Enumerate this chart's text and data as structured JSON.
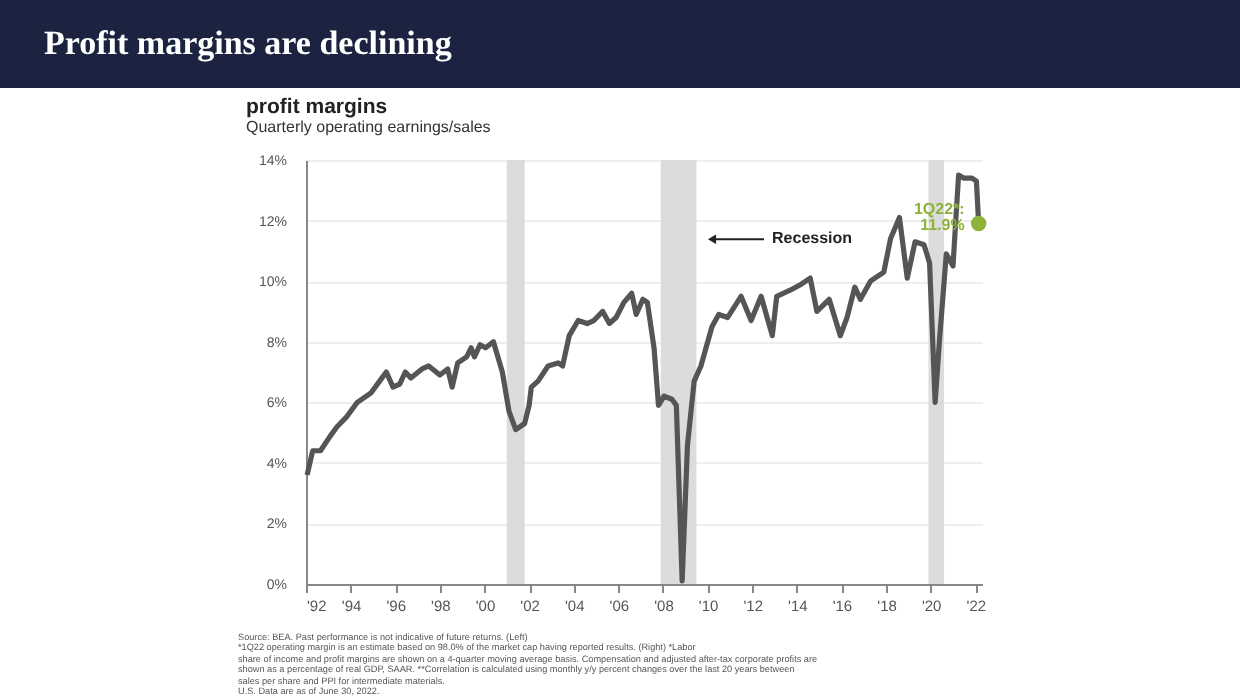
{
  "chart_data": {
    "type": "line",
    "title": "Profit margins are declining",
    "subtitle": "Quarterly operating earnings/sales",
    "annotations": [
      "profit margins",
      {
        "text": "1Q22*:\n11.9%",
        "x": 2022.15,
        "y": 11.9
      },
      "Source: BEA. Past performance is not indicative of future returns. (Left)\n*1Q22 operating margin is an estimate based on 98.0% of the market cap having reported results. (Right) *Labor\nshare of income and profit margins are shown on a 4-quarter moving average basis. Compensation and adjusted after-tax corporate profits are\nshown as a percentage of real GDP, SAAR. **Correlation is calculated using monthly y/y percent changes over the last 20 years between\nsales per share and PPI for intermediate materials.\nU.S. Data are as of June 30, 2022."
    ],
    "xlim": [
      1992,
      2022.3
    ],
    "xticks": [
      {
        "value": 1992,
        "label": "'92"
      },
      {
        "value": 1994,
        "label": "'94"
      },
      {
        "value": 1996,
        "label": "'96"
      },
      {
        "value": 1998,
        "label": "'98"
      },
      {
        "value": 2000,
        "label": "'00"
      },
      {
        "value": 2002,
        "label": "'02"
      },
      {
        "value": 2004,
        "label": "'04"
      },
      {
        "value": 2006,
        "label": "'06"
      },
      {
        "value": 2008,
        "label": "'08"
      },
      {
        "value": 2010,
        "label": "'10"
      },
      {
        "value": 2012,
        "label": "'12"
      },
      {
        "value": 2014,
        "label": "'14"
      },
      {
        "value": 2016,
        "label": "'16"
      },
      {
        "value": 2018,
        "label": "'18"
      },
      {
        "value": 2020,
        "label": "'20"
      },
      {
        "value": 2022,
        "label": "'22"
      }
    ],
    "ylim": [
      0,
      14
    ],
    "yticks": [
      {
        "value": 0,
        "label": "0%"
      },
      {
        "value": 2,
        "label": "2%"
      },
      {
        "value": 4,
        "label": "4%"
      },
      {
        "value": 6,
        "label": "6%"
      },
      {
        "value": 8,
        "label": "8%"
      },
      {
        "value": 10,
        "label": "10%"
      },
      {
        "value": 12,
        "label": "12%"
      },
      {
        "value": 14,
        "label": "14%"
      }
    ],
    "grid": "y",
    "bands": [
      {
        "axis": "x",
        "from": 2001.0,
        "to": 2001.8,
        "color": "#dcdcdc"
      },
      {
        "axis": "x",
        "from": 2007.9,
        "to": 2009.5,
        "color": "#dcdcdc",
        "label": "Recession"
      },
      {
        "axis": "x",
        "from": 2019.9,
        "to": 2020.6,
        "color": "#dcdcdc"
      }
    ],
    "series": [
      {
        "color": "#555555",
        "x": [
          1992.05,
          1992.3,
          1992.65,
          1993.1,
          1993.4,
          1993.8,
          1994.3,
          1994.9,
          1995.3,
          1995.6,
          1995.9,
          1996.2,
          1996.45,
          1996.7,
          1997.2,
          1997.5,
          1998.0,
          1998.35,
          1998.55,
          1998.8,
          1999.2,
          1999.4,
          1999.55,
          1999.8,
          2000.05,
          2000.4,
          2000.8,
          2001.1,
          2001.4,
          2001.8,
          2002.0,
          2002.1,
          2002.4,
          2002.85,
          2003.3,
          2003.5,
          2003.8,
          2004.2,
          2004.6,
          2004.9,
          2005.3,
          2005.6,
          2005.9,
          2006.25,
          2006.6,
          2006.8,
          2007.1,
          2007.3,
          2007.6,
          2007.8,
          2008.05,
          2008.4,
          2008.6,
          2008.86,
          2009.1,
          2009.4,
          2009.7,
          2010.2,
          2010.5,
          2010.9,
          2011.5,
          2011.95,
          2012.4,
          2012.9,
          2013.1,
          2013.7,
          2014.2,
          2014.6,
          2014.9,
          2015.45,
          2015.95,
          2016.25,
          2016.6,
          2016.85,
          2017.3,
          2017.9,
          2018.2,
          2018.6,
          2018.95,
          2019.3,
          2019.7,
          2019.95,
          2020.2,
          2020.4,
          2020.7,
          2021.0,
          2021.25,
          2021.5,
          2021.85,
          2022.05,
          2022.15
        ],
        "values": [
          3.6,
          4.4,
          4.4,
          4.9,
          5.2,
          5.5,
          6.0,
          6.3,
          6.7,
          7.0,
          6.5,
          6.6,
          7.0,
          6.8,
          7.1,
          7.2,
          6.9,
          7.1,
          6.5,
          7.3,
          7.5,
          7.8,
          7.5,
          7.9,
          7.8,
          8.0,
          7.0,
          5.7,
          5.1,
          5.3,
          5.9,
          6.5,
          6.7,
          7.2,
          7.3,
          7.2,
          8.2,
          8.7,
          8.6,
          8.7,
          9.0,
          8.6,
          8.8,
          9.3,
          9.6,
          8.9,
          9.4,
          9.3,
          7.8,
          5.9,
          6.2,
          6.1,
          5.9,
          0.1,
          4.6,
          6.7,
          7.2,
          8.5,
          8.9,
          8.8,
          9.5,
          8.7,
          9.5,
          8.2,
          9.5,
          9.7,
          9.9,
          10.1,
          9.0,
          9.4,
          8.2,
          8.8,
          9.8,
          9.4,
          10.0,
          10.3,
          11.4,
          12.1,
          10.1,
          11.3,
          11.2,
          10.6,
          6.0,
          8.1,
          10.9,
          10.5,
          13.5,
          13.4,
          13.4,
          13.3,
          11.9
        ]
      },
      {
        "type": "scatter",
        "color": "#8db33a",
        "x": [
          2022.15
        ],
        "values": [
          11.9
        ]
      }
    ]
  }
}
